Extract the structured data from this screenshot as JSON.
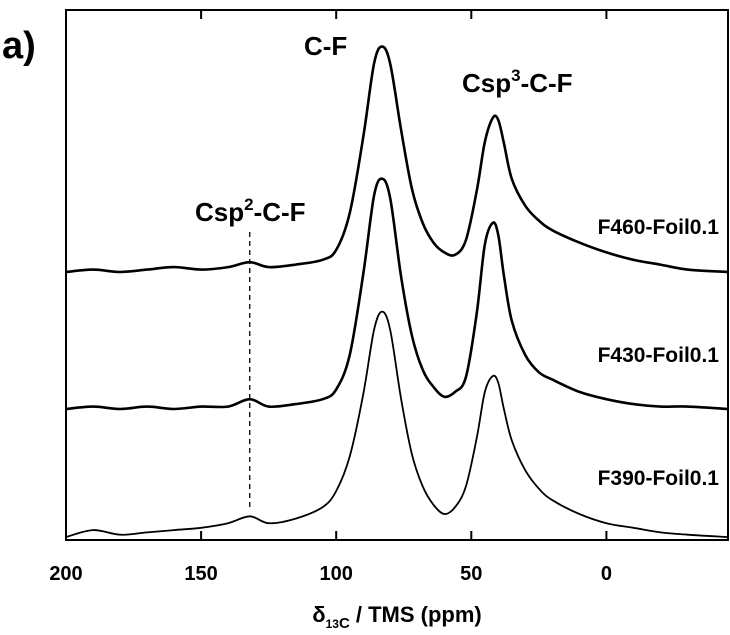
{
  "chart_data": {
    "type": "line",
    "panel_label": "a)",
    "xlabel_delta": "δ",
    "xlabel_sub_a": "13",
    "xlabel_sub_b": "C",
    "xlabel_rest": " / TMS (ppm)",
    "xlim": [
      200,
      -45
    ],
    "x_reversed": true,
    "xticks": [
      200,
      150,
      100,
      50,
      0
    ],
    "xtick_labels": [
      "200",
      "150",
      "100",
      "50",
      "0"
    ],
    "y_axis_labels": false,
    "grid": false,
    "annotations": {
      "cf": "C-F",
      "csp3_base": "Csp",
      "csp3_sup": "3",
      "csp3_tail": "-C-F",
      "csp2_base": "Csp",
      "csp2_sup": "2",
      "csp2_tail": "-C-F"
    },
    "reference_line_ppm": 132,
    "series": [
      {
        "name": "F460-Foil0.1",
        "x": [
          200,
          190,
          180,
          170,
          160,
          150,
          140,
          132,
          125,
          115,
          105,
          100,
          95,
          90,
          86,
          83,
          80,
          76,
          72,
          68,
          64,
          60,
          56,
          52,
          48,
          45,
          42,
          40,
          38,
          35,
          30,
          25,
          20,
          10,
          0,
          -10,
          -20,
          -30,
          -45
        ],
        "y": [
          0.0,
          0.01,
          0.0,
          0.01,
          0.02,
          0.01,
          0.02,
          0.04,
          0.02,
          0.03,
          0.05,
          0.09,
          0.24,
          0.55,
          0.85,
          0.92,
          0.85,
          0.58,
          0.34,
          0.2,
          0.12,
          0.08,
          0.07,
          0.13,
          0.33,
          0.53,
          0.63,
          0.62,
          0.53,
          0.38,
          0.27,
          0.21,
          0.17,
          0.12,
          0.08,
          0.05,
          0.03,
          0.01,
          0.0
        ]
      },
      {
        "name": "F430-Foil0.1",
        "x": [
          200,
          190,
          180,
          170,
          160,
          150,
          140,
          132,
          125,
          115,
          105,
          100,
          95,
          90,
          86,
          83,
          80,
          76,
          72,
          68,
          64,
          60,
          56,
          52,
          48,
          45,
          42,
          40,
          38,
          35,
          30,
          25,
          20,
          10,
          0,
          -10,
          -20,
          -30,
          -45
        ],
        "y": [
          0.0,
          0.01,
          0.0,
          0.01,
          0.0,
          0.01,
          0.01,
          0.04,
          0.01,
          0.02,
          0.04,
          0.08,
          0.22,
          0.55,
          0.87,
          0.94,
          0.86,
          0.54,
          0.3,
          0.16,
          0.09,
          0.05,
          0.07,
          0.13,
          0.39,
          0.67,
          0.76,
          0.71,
          0.55,
          0.36,
          0.22,
          0.15,
          0.12,
          0.07,
          0.04,
          0.02,
          0.01,
          0.01,
          0.0
        ]
      },
      {
        "name": "F390-Foil0.1",
        "x": [
          200,
          190,
          180,
          170,
          160,
          150,
          140,
          132,
          125,
          115,
          105,
          100,
          95,
          90,
          86,
          83,
          80,
          76,
          72,
          68,
          64,
          60,
          56,
          52,
          48,
          45,
          42,
          40,
          38,
          35,
          30,
          25,
          20,
          10,
          0,
          -10,
          -20,
          -30,
          -45
        ],
        "y": [
          0.0,
          0.03,
          0.01,
          0.02,
          0.03,
          0.04,
          0.06,
          0.09,
          0.06,
          0.08,
          0.13,
          0.2,
          0.35,
          0.62,
          0.9,
          0.98,
          0.9,
          0.6,
          0.36,
          0.22,
          0.14,
          0.1,
          0.13,
          0.22,
          0.43,
          0.63,
          0.7,
          0.67,
          0.56,
          0.42,
          0.29,
          0.21,
          0.16,
          0.1,
          0.06,
          0.04,
          0.02,
          0.01,
          0.0
        ]
      }
    ]
  }
}
